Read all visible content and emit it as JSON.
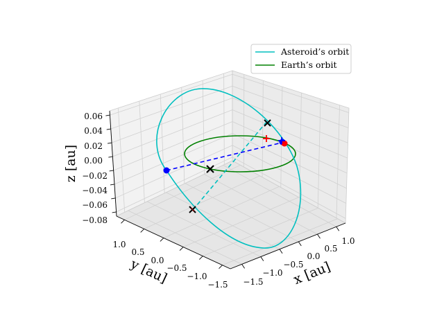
{
  "chart_data": {
    "type": "line3d",
    "axes": {
      "x": {
        "label": "x [au]",
        "ticks": [
          "−1.5",
          "−1.0",
          "−0.5",
          "0.0",
          "0.5",
          "1.0"
        ]
      },
      "y": {
        "label": "y [au]",
        "ticks": [
          "−1.5",
          "−1.0",
          "−0.5",
          "0.0",
          "0.5",
          "1.0"
        ]
      },
      "z": {
        "label": "z [au]",
        "ticks": [
          "−0.08",
          "−0.06",
          "−0.04",
          "−0.02",
          "0.00",
          "0.02",
          "0.04",
          "0.06"
        ]
      }
    },
    "grid": true,
    "legend": {
      "placement": "top-right",
      "entries": [
        "Asteroid’s orbit",
        "Earth’s orbit"
      ]
    },
    "series": [
      {
        "name": "Asteroid’s orbit",
        "color": "#00bfbf",
        "style": "solid"
      },
      {
        "name": "Earth’s orbit",
        "color": "#008000",
        "style": "solid"
      }
    ],
    "annotations": [
      {
        "kind": "line-of-apsides",
        "color": "#0000ff",
        "style": "dashed"
      },
      {
        "kind": "line-of-nodes",
        "color": "#00bfbf",
        "style": "dashed"
      },
      {
        "kind": "apsis-point",
        "color": "#0000ff",
        "marker": "circle"
      },
      {
        "kind": "apsis-point",
        "color": "#0000ff",
        "marker": "circle"
      },
      {
        "kind": "node-point",
        "color": "#000000",
        "marker": "x"
      },
      {
        "kind": "node-point",
        "color": "#000000",
        "marker": "x"
      },
      {
        "kind": "center-point",
        "color": "#000000",
        "marker": "x"
      },
      {
        "kind": "earth-position",
        "color": "#ff0000",
        "marker": "circle"
      },
      {
        "kind": "marker",
        "color": "#ff0000",
        "marker": "+"
      },
      {
        "kind": "marker",
        "color": "#0000ff",
        "marker": "+"
      }
    ]
  }
}
